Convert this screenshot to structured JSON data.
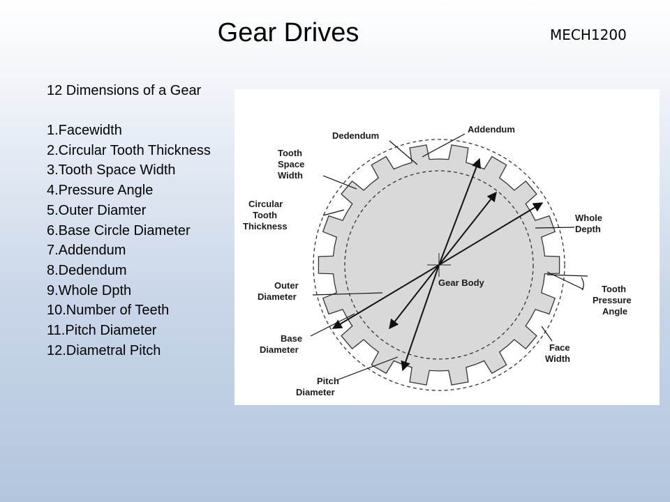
{
  "slide": {
    "title": "Gear Drives",
    "course_code": "MECH1200"
  },
  "list": {
    "heading": "12 Dimensions of a Gear",
    "items": [
      "1.Facewidth",
      "2.Circular Tooth Thickness",
      "3.Tooth Space Width",
      "4.Pressure Angle",
      "5.Outer Diamter",
      "6.Base Circle Diameter",
      "7.Addendum",
      "8.Dedendum",
      "9.Whole Dpth",
      "10.Number of Teeth",
      "11.Pitch Diameter",
      "12.Diametral Pitch"
    ]
  },
  "diagram": {
    "labels": {
      "addendum": "Addendum",
      "dedendum": "Dedendum",
      "tooth_space_width": [
        "Tooth",
        "Space",
        "Width"
      ],
      "circular_tooth_thickness": [
        "Circular",
        "Tooth",
        "Thickness"
      ],
      "whole_depth": [
        "Whole",
        "Depth"
      ],
      "gear_body": "Gear Body",
      "outer_diameter": [
        "Outer",
        "Diameter"
      ],
      "tooth_pressure_angle": [
        "Tooth",
        "Pressure",
        "Angle"
      ],
      "base_diameter": [
        "Base",
        "Diameter"
      ],
      "face_width": [
        "Face",
        "Width"
      ],
      "pitch_diameter": [
        "Pitch",
        "Diameter"
      ]
    },
    "colors": {
      "gear_fill": "#d9d9d9",
      "outline": "#333333",
      "panel": "#ffffff"
    }
  }
}
